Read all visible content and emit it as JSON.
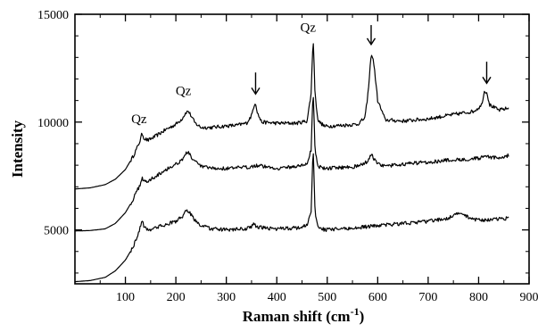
{
  "chart_data": {
    "type": "line",
    "xlabel": "Raman shift (cm",
    "xlabel_sup": "-1",
    "xlabel_tail": ")",
    "ylabel": "Intensity",
    "xlim": [
      0,
      900
    ],
    "ylim": [
      2500,
      15000
    ],
    "x_ticks": [
      100,
      200,
      300,
      400,
      500,
      600,
      700,
      800,
      900
    ],
    "x_minor_step": 50,
    "y_ticks": [
      5000,
      10000,
      15000
    ],
    "y_minor_step": 1000,
    "grid": false,
    "legend": "none",
    "line_color": "#000000",
    "series": [
      {
        "x": [
          0,
          30,
          60,
          80,
          100,
          115,
          125,
          130,
          133,
          137,
          145,
          160,
          180,
          200,
          212,
          220,
          225,
          230,
          238,
          250,
          270,
          300,
          320,
          340,
          350,
          355,
          358,
          362,
          370,
          400,
          440,
          460,
          468,
          472,
          476,
          482,
          495,
          530,
          560,
          575,
          582,
          587,
          592,
          600,
          615,
          650,
          700,
          750,
          790,
          805,
          812,
          816,
          822,
          840,
          860
        ],
        "y": [
          6900,
          6950,
          7100,
          7350,
          7800,
          8400,
          8900,
          9200,
          9500,
          9250,
          9150,
          9350,
          9650,
          9900,
          10150,
          10450,
          10500,
          10300,
          9950,
          9750,
          9750,
          9820,
          9850,
          9950,
          10300,
          10800,
          10900,
          10400,
          10000,
          9950,
          9950,
          10050,
          11300,
          14000,
          11200,
          10050,
          9800,
          9850,
          9900,
          10200,
          11600,
          13200,
          12800,
          11000,
          10100,
          10050,
          10150,
          10350,
          10500,
          10750,
          11450,
          11400,
          10800,
          10550,
          10650
        ]
      },
      {
        "x": [
          0,
          30,
          60,
          80,
          100,
          115,
          125,
          130,
          133,
          137,
          145,
          160,
          180,
          200,
          212,
          220,
          225,
          230,
          238,
          250,
          270,
          300,
          340,
          360,
          400,
          440,
          460,
          468,
          472,
          476,
          482,
          495,
          530,
          560,
          575,
          582,
          587,
          592,
          600,
          615,
          650,
          700,
          750,
          790,
          805,
          812,
          816,
          822,
          840,
          860
        ],
        "y": [
          4950,
          4970,
          5050,
          5300,
          5800,
          6400,
          6900,
          7150,
          7450,
          7250,
          7250,
          7500,
          7800,
          8050,
          8250,
          8550,
          8600,
          8400,
          8150,
          7950,
          7850,
          7850,
          7900,
          8000,
          7850,
          7950,
          8050,
          8700,
          11600,
          8600,
          7950,
          7850,
          7900,
          7950,
          8100,
          8250,
          8550,
          8300,
          8050,
          7950,
          8050,
          8150,
          8250,
          8300,
          8350,
          8350,
          8400,
          8350,
          8350,
          8450
        ]
      },
      {
        "x": [
          0,
          30,
          60,
          80,
          100,
          115,
          125,
          130,
          133,
          137,
          145,
          160,
          180,
          200,
          212,
          220,
          225,
          230,
          238,
          250,
          270,
          300,
          340,
          350,
          355,
          360,
          370,
          400,
          440,
          460,
          468,
          472,
          476,
          482,
          495,
          530,
          560,
          600,
          650,
          700,
          740,
          760,
          770,
          790,
          820,
          860
        ],
        "y": [
          2600,
          2650,
          2800,
          3100,
          3600,
          4200,
          4800,
          5150,
          5500,
          5150,
          5000,
          5100,
          5250,
          5400,
          5600,
          5850,
          5900,
          5700,
          5450,
          5200,
          5050,
          5000,
          5050,
          5150,
          5300,
          5150,
          5100,
          5050,
          5100,
          5200,
          5800,
          8900,
          5750,
          5150,
          5000,
          5050,
          5100,
          5200,
          5300,
          5400,
          5550,
          5750,
          5700,
          5500,
          5450,
          5550
        ]
      }
    ],
    "annotations": [
      {
        "kind": "text",
        "text": "Qz",
        "x": 127,
        "y": 9950
      },
      {
        "kind": "text",
        "text": "Qz",
        "x": 215,
        "y": 11250
      },
      {
        "kind": "text",
        "text": "Qz",
        "x": 462,
        "y": 14200
      },
      {
        "kind": "arrow",
        "x": 358,
        "y_from": 12300,
        "y_to": 11300
      },
      {
        "kind": "arrow",
        "x": 587,
        "y_from": 14500,
        "y_to": 13600
      },
      {
        "kind": "arrow",
        "x": 816,
        "y_from": 12800,
        "y_to": 11800
      }
    ]
  }
}
